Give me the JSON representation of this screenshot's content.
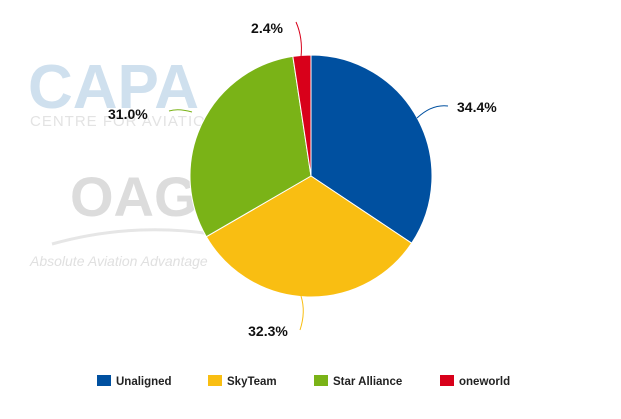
{
  "watermark": {
    "capa": "CAPA",
    "capa_sub": "CENTRE FOR AVIATION",
    "oag": "OAG",
    "oag_tagline": "Absolute Aviation Advantage"
  },
  "chart_data": {
    "type": "pie",
    "title": "",
    "start_angle_deg": 0,
    "direction": "clockwise",
    "legend_position": "bottom",
    "slices": [
      {
        "name": "Unaligned",
        "value": 34.4,
        "label": "34.4%",
        "color": "#0050a0"
      },
      {
        "name": "SkyTeam",
        "value": 32.3,
        "label": "32.3%",
        "color": "#f9be12"
      },
      {
        "name": "Star Alliance",
        "value": 31.0,
        "label": "31.0%",
        "color": "#7ab317"
      },
      {
        "name": "oneworld",
        "value": 2.4,
        "label": "2.4%",
        "color": "#d8001a"
      }
    ]
  }
}
